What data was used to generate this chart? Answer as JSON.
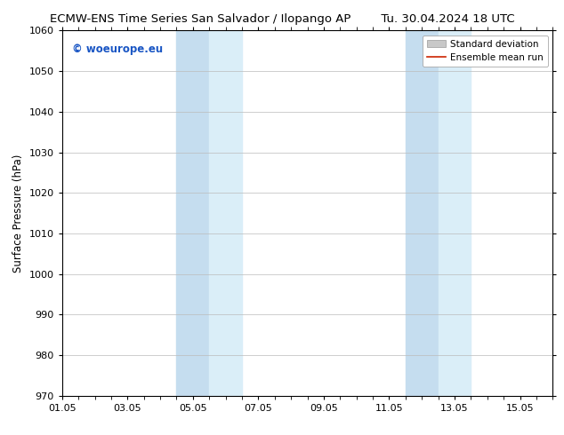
{
  "title_left": "ECMW-ENS Time Series San Salvador / Ilopango AP",
  "title_right": "Tu. 30.04.2024 18 UTC",
  "ylabel": "Surface Pressure (hPa)",
  "ylim": [
    970,
    1060
  ],
  "yticks": [
    970,
    980,
    990,
    1000,
    1010,
    1020,
    1030,
    1040,
    1050,
    1060
  ],
  "xlim_start": 0,
  "xlim_end": 15,
  "xtick_labels": [
    "01.05",
    "03.05",
    "05.05",
    "07.05",
    "09.05",
    "11.05",
    "13.05",
    "15.05"
  ],
  "xtick_positions": [
    0,
    2,
    4,
    6,
    8,
    10,
    12,
    14
  ],
  "shaded_bands": [
    {
      "x_start": 3.5,
      "x_end": 4.5,
      "color": "#d8eaf7"
    },
    {
      "x_start": 4.5,
      "x_end": 5.5,
      "color": "#daeefa"
    },
    {
      "x_start": 10.5,
      "x_end": 11.5,
      "color": "#d8eaf7"
    },
    {
      "x_start": 11.5,
      "x_end": 12.5,
      "color": "#daeefa"
    }
  ],
  "watermark_text": "© woeurope.eu",
  "watermark_color": "#1a56c4",
  "bg_color": "#ffffff",
  "plot_bg_color": "#ffffff",
  "legend_std_color": "#c8c8c8",
  "legend_mean_color": "#cc2200",
  "title_fontsize": 9.5,
  "ylabel_fontsize": 8.5,
  "tick_fontsize": 8,
  "watermark_fontsize": 8.5,
  "legend_fontsize": 7.5,
  "band_color": "#ddeef8",
  "band_color2": "#c8dff0"
}
